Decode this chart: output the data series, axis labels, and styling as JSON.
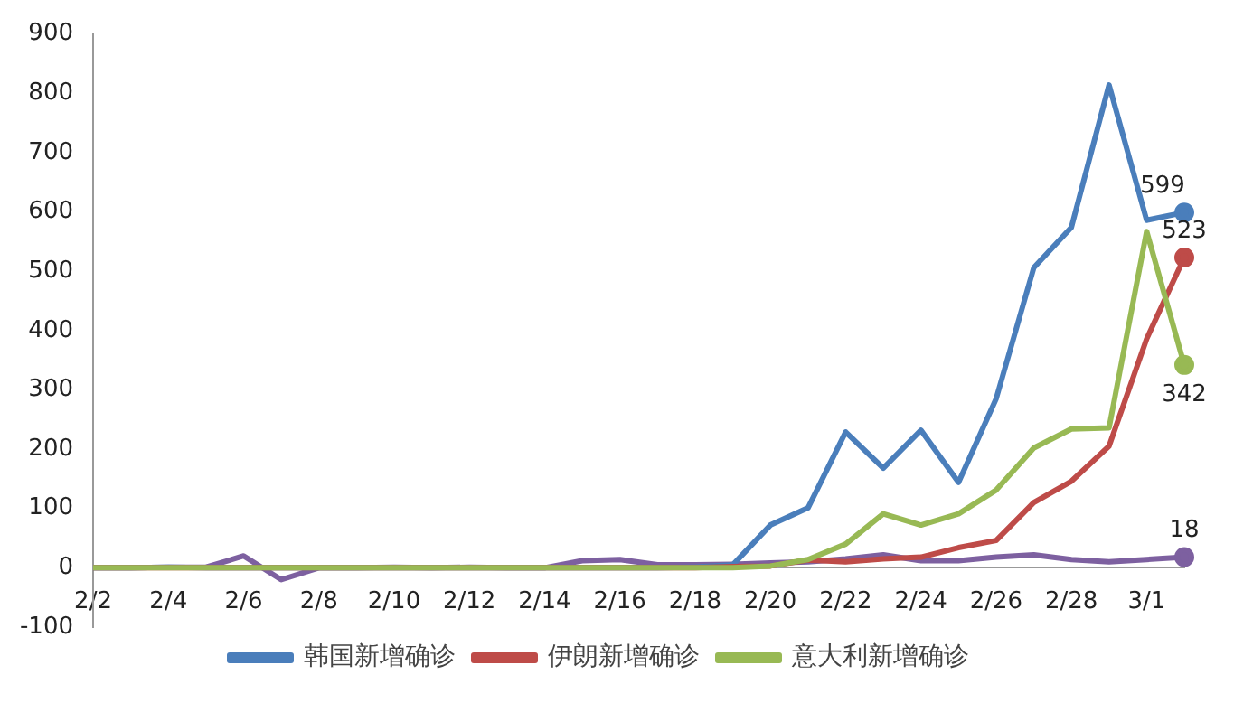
{
  "chart_data": {
    "type": "line",
    "categories": [
      "2/2",
      null,
      "2/4",
      null,
      "2/6",
      null,
      "2/8",
      null,
      "2/10",
      null,
      "2/12",
      null,
      "2/14",
      null,
      "2/16",
      null,
      "2/18",
      null,
      "2/20",
      null,
      "2/22",
      null,
      "2/24",
      null,
      "2/26",
      null,
      "2/28",
      null,
      "3/1",
      null
    ],
    "series": [
      {
        "name": "韩国新增确诊",
        "color": "#4a7ebb",
        "values": [
          0,
          0,
          1,
          0,
          0,
          0,
          0,
          0,
          0,
          0,
          0,
          0,
          0,
          0,
          0,
          0,
          1,
          5,
          72,
          101,
          229,
          168,
          232,
          144,
          285,
          506,
          574,
          814,
          586,
          599
        ],
        "value_labels": [
          null,
          null,
          null,
          null,
          null,
          null,
          null,
          null,
          null,
          null,
          null,
          null,
          null,
          null,
          null,
          null,
          null,
          null,
          null,
          null,
          null,
          null,
          null,
          null,
          null,
          null,
          null,
          null,
          null,
          "599"
        ]
      },
      {
        "name": "伊朗新增确诊",
        "color": "#be4b48",
        "values": [
          0,
          0,
          0,
          0,
          0,
          0,
          0,
          0,
          0,
          0,
          0,
          0,
          0,
          0,
          0,
          0,
          0,
          2,
          3,
          13,
          10,
          15,
          18,
          34,
          46,
          110,
          146,
          205,
          386,
          523
        ],
        "value_labels": [
          null,
          null,
          null,
          null,
          null,
          null,
          null,
          null,
          null,
          null,
          null,
          null,
          null,
          null,
          null,
          null,
          null,
          null,
          null,
          null,
          null,
          null,
          null,
          null,
          null,
          null,
          null,
          null,
          null,
          "523"
        ]
      },
      {
        "name": "意大利新增确诊",
        "color": "#98b954",
        "values": [
          0,
          0,
          0,
          0,
          0,
          0,
          0,
          0,
          0,
          0,
          0,
          0,
          0,
          0,
          0,
          0,
          0,
          0,
          3,
          14,
          40,
          91,
          72,
          91,
          131,
          202,
          234,
          236,
          567,
          342
        ],
        "value_labels": [
          null,
          null,
          null,
          null,
          null,
          null,
          null,
          null,
          null,
          null,
          null,
          null,
          null,
          null,
          null,
          null,
          null,
          null,
          null,
          null,
          null,
          null,
          null,
          null,
          null,
          null,
          null,
          null,
          null,
          "342"
        ]
      },
      {
        "color": "#7d60a0",
        "values": [
          0,
          0,
          1,
          1,
          20,
          -20,
          0,
          0,
          1,
          0,
          1,
          0,
          0,
          12,
          14,
          5,
          5,
          6,
          8,
          10,
          15,
          22,
          12,
          12,
          18,
          22,
          14,
          10,
          14,
          18
        ],
        "value_labels": [
          null,
          null,
          null,
          null,
          null,
          null,
          null,
          null,
          null,
          null,
          null,
          null,
          null,
          null,
          null,
          null,
          null,
          null,
          null,
          null,
          null,
          null,
          null,
          null,
          null,
          null,
          null,
          null,
          null,
          "18"
        ]
      }
    ],
    "ylim": [
      -100,
      900
    ],
    "yticks": [
      -100,
      0,
      100,
      200,
      300,
      400,
      500,
      600,
      700,
      800,
      900
    ],
    "grid": false,
    "legend": "bottom"
  }
}
